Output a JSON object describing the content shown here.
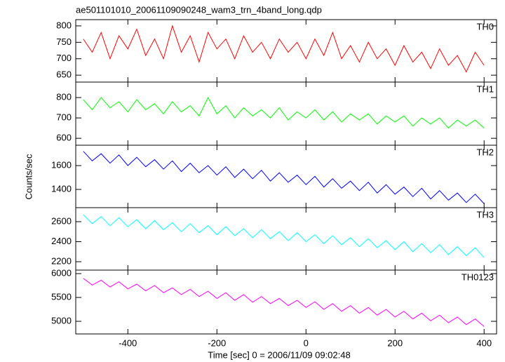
{
  "title": "ae501101010_20061109090248_wam3_trn_4band_long.qdp",
  "ylabel": "Counts/sec",
  "xlabel": "Time [sec] 0 = 2006/11/09 09:02:48",
  "chart_data": [
    {
      "type": "line",
      "xlim": [
        -517,
        428
      ],
      "xticks": [
        -400,
        -200,
        0,
        200,
        400
      ],
      "ylim": [
        629,
        819
      ],
      "yticks": [
        650,
        700,
        750,
        800
      ],
      "x": [
        -500,
        -480,
        -460,
        -440,
        -420,
        -400,
        -380,
        -360,
        -340,
        -320,
        -300,
        -280,
        -260,
        -240,
        -220,
        -200,
        -180,
        -160,
        -140,
        -120,
        -100,
        -80,
        -60,
        -40,
        -20,
        0,
        20,
        40,
        60,
        80,
        100,
        120,
        140,
        160,
        180,
        200,
        220,
        240,
        260,
        280,
        300,
        320,
        340,
        360,
        380,
        400
      ],
      "series": [
        {
          "name": "TH0",
          "color": "#ff0000",
          "values": [
            760,
            720,
            780,
            700,
            770,
            730,
            790,
            710,
            760,
            700,
            800,
            720,
            770,
            690,
            780,
            730,
            760,
            700,
            770,
            720,
            750,
            700,
            760,
            720,
            750,
            700,
            760,
            710,
            780,
            700,
            740,
            690,
            750,
            700,
            730,
            680,
            740,
            690,
            720,
            670,
            730,
            680,
            710,
            660,
            720,
            680
          ]
        }
      ]
    },
    {
      "type": "line",
      "xlim": [
        -517,
        428
      ],
      "xticks": [
        -400,
        -200,
        0,
        200,
        400
      ],
      "ylim": [
        566,
        876
      ],
      "yticks": [
        600,
        700,
        800
      ],
      "x": [
        -500,
        -480,
        -460,
        -440,
        -420,
        -400,
        -380,
        -360,
        -340,
        -320,
        -300,
        -280,
        -260,
        -240,
        -220,
        -200,
        -180,
        -160,
        -140,
        -120,
        -100,
        -80,
        -60,
        -40,
        -20,
        0,
        20,
        40,
        60,
        80,
        100,
        120,
        140,
        160,
        180,
        200,
        220,
        240,
        260,
        280,
        300,
        320,
        340,
        360,
        380,
        400
      ],
      "series": [
        {
          "name": "TH1",
          "color": "#00ff00",
          "values": [
            790,
            740,
            800,
            750,
            780,
            730,
            790,
            740,
            770,
            720,
            780,
            730,
            760,
            710,
            800,
            720,
            760,
            700,
            750,
            710,
            740,
            700,
            750,
            690,
            730,
            700,
            740,
            690,
            730,
            680,
            720,
            690,
            720,
            670,
            710,
            680,
            710,
            660,
            700,
            670,
            700,
            650,
            690,
            660,
            690,
            650
          ]
        }
      ]
    },
    {
      "type": "line",
      "xlim": [
        -517,
        428
      ],
      "xticks": [
        -400,
        -200,
        0,
        200,
        400
      ],
      "ylim": [
        1247,
        1771
      ],
      "yticks": [
        1400,
        1600
      ],
      "x": [
        -500,
        -480,
        -460,
        -440,
        -420,
        -400,
        -380,
        -360,
        -340,
        -320,
        -300,
        -280,
        -260,
        -240,
        -220,
        -200,
        -180,
        -160,
        -140,
        -120,
        -100,
        -80,
        -60,
        -40,
        -20,
        0,
        20,
        40,
        60,
        80,
        100,
        120,
        140,
        160,
        180,
        200,
        220,
        240,
        260,
        280,
        300,
        320,
        340,
        360,
        380,
        400
      ],
      "series": [
        {
          "name": "TH2",
          "color": "#0000ff",
          "values": [
            1720,
            1640,
            1700,
            1620,
            1690,
            1600,
            1670,
            1590,
            1650,
            1570,
            1640,
            1550,
            1620,
            1540,
            1600,
            1520,
            1590,
            1500,
            1570,
            1490,
            1560,
            1470,
            1540,
            1460,
            1520,
            1440,
            1510,
            1420,
            1490,
            1410,
            1470,
            1390,
            1460,
            1370,
            1440,
            1360,
            1420,
            1340,
            1410,
            1320,
            1390,
            1310,
            1370,
            1290,
            1360,
            1280
          ]
        }
      ]
    },
    {
      "type": "line",
      "xlim": [
        -517,
        428
      ],
      "xticks": [
        -400,
        -200,
        0,
        200,
        400
      ],
      "ylim": [
        2116,
        2740
      ],
      "yticks": [
        2200,
        2400,
        2600
      ],
      "x": [
        -500,
        -480,
        -460,
        -440,
        -420,
        -400,
        -380,
        -360,
        -340,
        -320,
        -300,
        -280,
        -260,
        -240,
        -220,
        -200,
        -180,
        -160,
        -140,
        -120,
        -100,
        -80,
        -60,
        -40,
        -20,
        0,
        20,
        40,
        60,
        80,
        100,
        120,
        140,
        160,
        180,
        200,
        220,
        240,
        260,
        280,
        300,
        320,
        340,
        360,
        380,
        400
      ],
      "series": [
        {
          "name": "TH3",
          "color": "#00ffff",
          "values": [
            2670,
            2580,
            2650,
            2560,
            2640,
            2550,
            2620,
            2530,
            2610,
            2520,
            2590,
            2500,
            2580,
            2490,
            2560,
            2470,
            2550,
            2460,
            2530,
            2440,
            2520,
            2430,
            2500,
            2410,
            2490,
            2400,
            2470,
            2380,
            2460,
            2370,
            2440,
            2350,
            2430,
            2340,
            2410,
            2320,
            2400,
            2300,
            2380,
            2290,
            2370,
            2270,
            2350,
            2260,
            2340,
            2240
          ]
        }
      ]
    },
    {
      "type": "line",
      "xlim": [
        -517,
        428
      ],
      "xticks": [
        -400,
        -200,
        0,
        200,
        400
      ],
      "ylim": [
        4735,
        6074
      ],
      "yticks": [
        5000,
        5500,
        6000
      ],
      "x": [
        -500,
        -480,
        -460,
        -440,
        -420,
        -400,
        -380,
        -360,
        -340,
        -320,
        -300,
        -280,
        -260,
        -240,
        -220,
        -200,
        -180,
        -160,
        -140,
        -120,
        -100,
        -80,
        -60,
        -40,
        -20,
        0,
        20,
        40,
        60,
        80,
        100,
        120,
        140,
        160,
        180,
        200,
        220,
        240,
        260,
        280,
        300,
        320,
        340,
        360,
        380,
        400
      ],
      "series": [
        {
          "name": "TH0123",
          "color": "#ff00ff",
          "values": [
            5900,
            5760,
            5860,
            5720,
            5830,
            5680,
            5780,
            5640,
            5750,
            5600,
            5700,
            5560,
            5670,
            5520,
            5630,
            5480,
            5600,
            5440,
            5560,
            5400,
            5520,
            5370,
            5480,
            5330,
            5440,
            5290,
            5410,
            5250,
            5370,
            5210,
            5330,
            5170,
            5290,
            5130,
            5250,
            5090,
            5210,
            5050,
            5170,
            5010,
            5130,
            4970,
            5090,
            4930,
            5050,
            4890
          ]
        }
      ]
    }
  ]
}
